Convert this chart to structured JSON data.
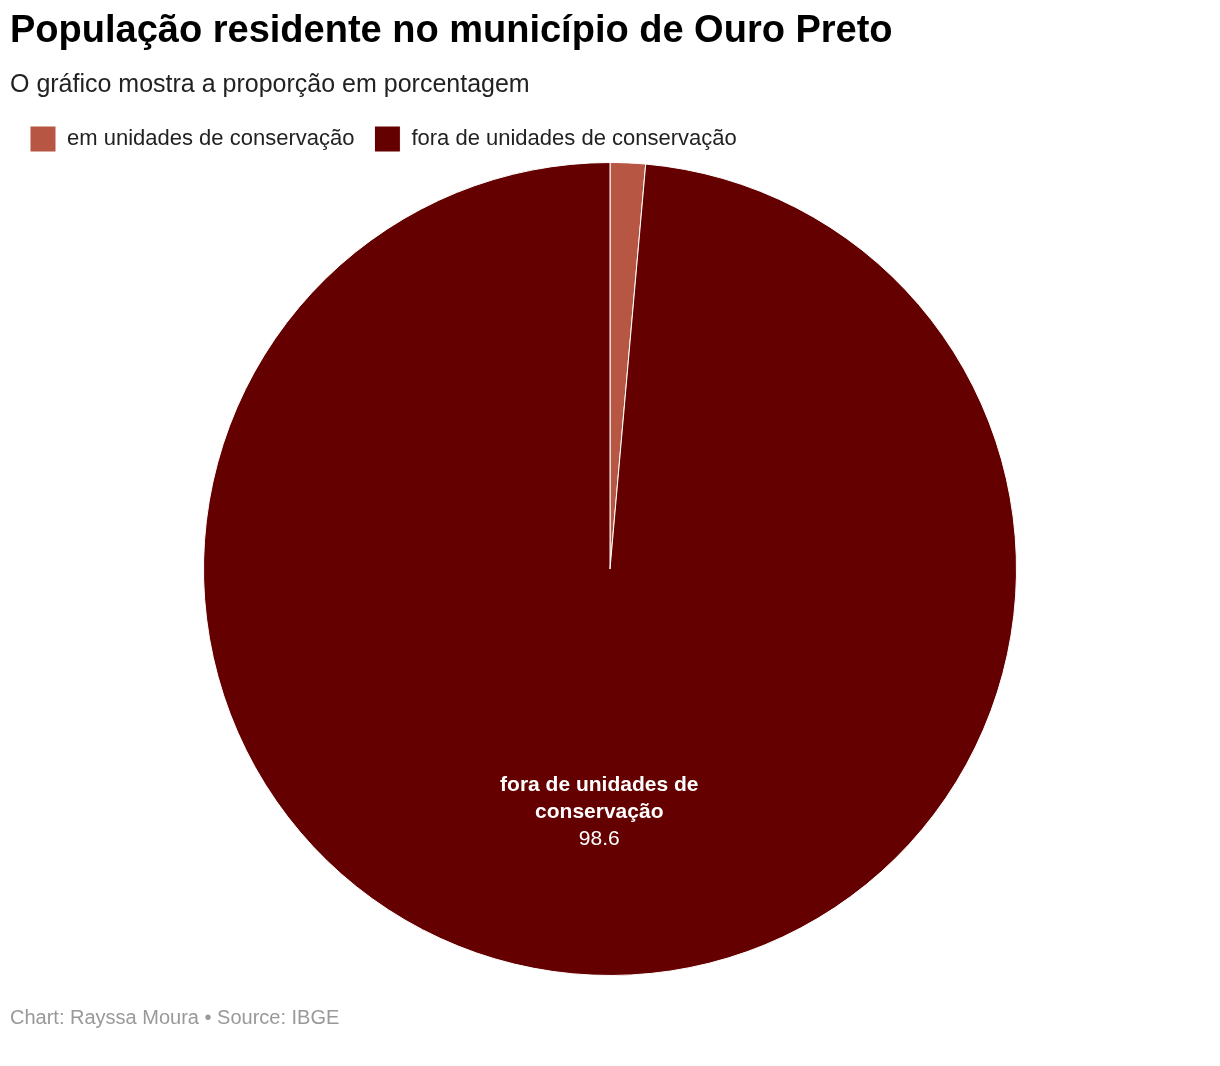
{
  "chart_data": {
    "type": "pie",
    "title": "População residente no município de Ouro Preto",
    "subtitle": "O gráfico mostra a proporção em porcentagem",
    "categories": [
      "em unidades de conservação",
      "fora de unidades de conservação"
    ],
    "values": [
      1.4,
      98.6
    ],
    "colors": [
      "#b75642",
      "#650000"
    ],
    "value_labels": [
      null,
      "98.6"
    ],
    "legend": "top left",
    "annotations": [
      "Chart: Rayssa Moura • Source: IBGE"
    ]
  }
}
